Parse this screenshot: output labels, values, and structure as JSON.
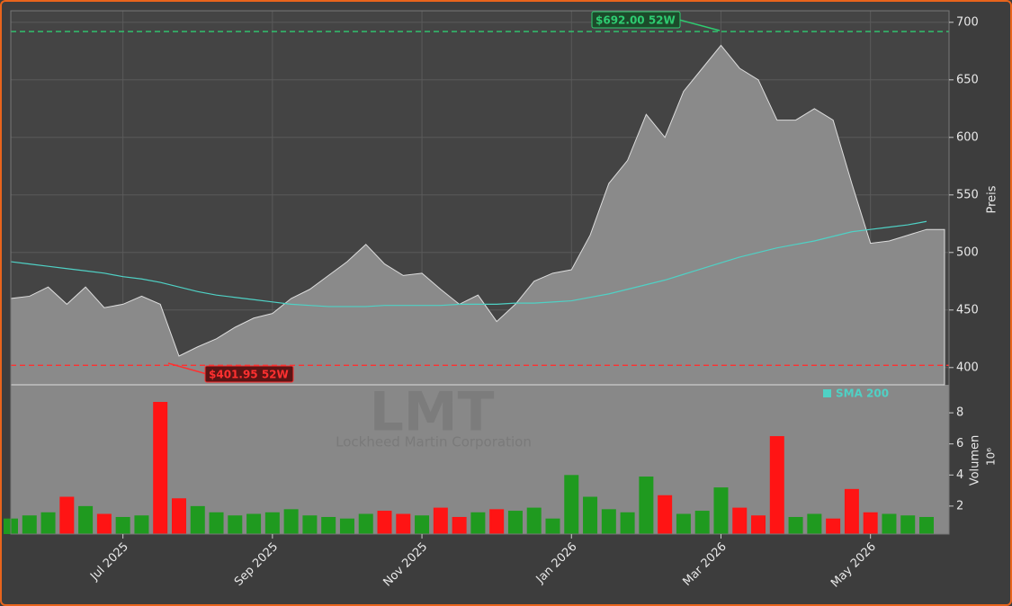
{
  "chart_data": [
    {
      "type": "area",
      "watermark": "LMT",
      "subtitle": "Lockheed Martin Corporation",
      "ylabel": "Preis",
      "categories": [
        null,
        null,
        null,
        null,
        null,
        null,
        "Jul 2025",
        null,
        null,
        null,
        null,
        null,
        null,
        null,
        "Sep 2025",
        null,
        null,
        null,
        null,
        null,
        null,
        null,
        "Nov 2025",
        null,
        null,
        null,
        null,
        null,
        null,
        null,
        "Jan 2026",
        null,
        null,
        null,
        null,
        null,
        null,
        null,
        "Mar 2026",
        null,
        null,
        null,
        null,
        null,
        null,
        null,
        "May 2026",
        null,
        null,
        null
      ],
      "series": [
        {
          "color": "#8a8a8a",
          "values": [
            460,
            462,
            470,
            455,
            470,
            452,
            455,
            462,
            455,
            410,
            418,
            425,
            435,
            443,
            447,
            460,
            468,
            480,
            492,
            507,
            490,
            480,
            482,
            468,
            455,
            463,
            440,
            455,
            475,
            482,
            485,
            515,
            560,
            580,
            620,
            600,
            640,
            660,
            680,
            660,
            650,
            615,
            615,
            625,
            615,
            560,
            508,
            510,
            515,
            520
          ]
        },
        {
          "name": "SMA 200",
          "color": "#4fd1c5",
          "values": [
            492,
            490,
            488,
            486,
            484,
            482,
            479,
            477,
            474,
            470,
            466,
            463,
            461,
            459,
            457,
            455,
            454,
            453,
            453,
            453,
            454,
            454,
            454,
            454,
            455,
            455,
            455,
            456,
            456,
            457,
            458,
            461,
            464,
            468,
            472,
            476,
            481,
            486,
            491,
            496,
            500,
            504,
            507,
            510,
            514,
            518,
            520,
            522,
            524,
            527
          ]
        }
      ],
      "annotations": [
        {
          "value": 692,
          "label": "$692.00 52W",
          "color": "#2ecc71"
        },
        {
          "value": 401.95,
          "label": "$401.95 52W",
          "color": "#ff3030"
        }
      ],
      "ylim": [
        385,
        710
      ],
      "yticks": [
        400,
        450,
        500,
        550,
        600,
        650,
        700
      ],
      "grid": true
    },
    {
      "type": "bar",
      "ylabel": "Volumen",
      "offset_label": "10⁶",
      "up_color": "#1f9a1f",
      "down_color": "#ff1414",
      "values": [
        1.2,
        1.4,
        1.6,
        2.6,
        2.0,
        1.5,
        1.3,
        1.4,
        8.7,
        2.5,
        2.0,
        1.6,
        1.4,
        1.5,
        1.6,
        1.8,
        1.4,
        1.3,
        1.2,
        1.5,
        1.7,
        1.5,
        1.4,
        1.9,
        1.3,
        1.6,
        1.8,
        1.7,
        1.9,
        1.2,
        4.0,
        2.6,
        1.8,
        1.6,
        3.9,
        2.7,
        1.5,
        1.7,
        3.2,
        1.9,
        1.4,
        6.5,
        1.3,
        1.5,
        1.2,
        3.1,
        1.6,
        1.5,
        1.4,
        1.3
      ],
      "ylim": [
        0.2,
        9.8
      ],
      "yticks": [
        2,
        4,
        6,
        8
      ]
    }
  ]
}
